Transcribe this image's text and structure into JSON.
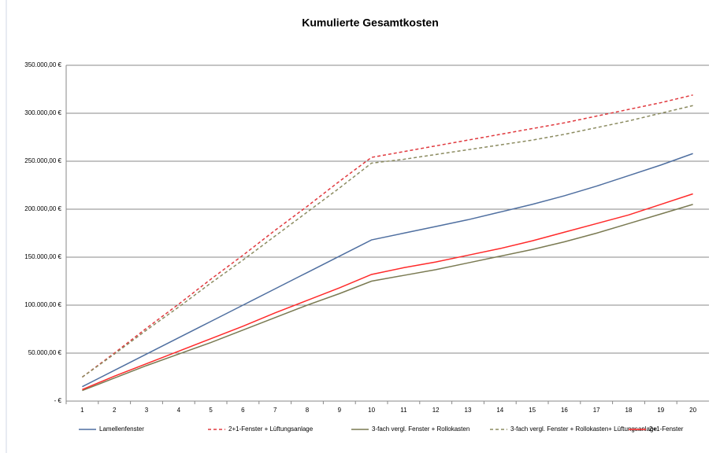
{
  "chart_data": {
    "type": "line",
    "title": "Kumulierte Gesamtkosten",
    "categories": [
      1,
      2,
      3,
      4,
      5,
      6,
      7,
      8,
      9,
      10,
      11,
      12,
      13,
      14,
      15,
      16,
      17,
      18,
      19,
      20
    ],
    "series": [
      {
        "name": "Lamellenfenster",
        "color": "#4f6fa0",
        "dashed": false,
        "values": [
          15000,
          32000,
          49000,
          66000,
          83000,
          100000,
          117000,
          134000,
          151000,
          168000,
          175000,
          182000,
          189000,
          197000,
          205000,
          214000,
          224000,
          235000,
          246000,
          258000
        ]
      },
      {
        "name": "2+1-Fenster + Lüftungsanlage",
        "color": "#e0393e",
        "dashed": true,
        "values": [
          25000,
          50000,
          76000,
          101000,
          127000,
          152000,
          178000,
          203000,
          229000,
          254000,
          260000,
          266000,
          272000,
          278000,
          284000,
          290000,
          297000,
          304000,
          311000,
          319000
        ]
      },
      {
        "name": "3-fach vergl. Fenster + Rollokasten",
        "color": "#7a7a52",
        "dashed": false,
        "values": [
          11000,
          24000,
          37000,
          49000,
          61000,
          74000,
          87000,
          100000,
          112000,
          125000,
          131000,
          137000,
          144000,
          151000,
          158000,
          166000,
          175000,
          185000,
          195000,
          205000
        ]
      },
      {
        "name": "3-fach vergl. Fenster + Rollokasten+ Lüftungsanlage",
        "color": "#8b8b60",
        "dashed": true,
        "values": [
          25000,
          49000,
          74000,
          98000,
          123000,
          147000,
          172000,
          197000,
          222000,
          248000,
          252000,
          257000,
          262000,
          267000,
          272000,
          278000,
          285000,
          292000,
          300000,
          308000
        ]
      },
      {
        "name": "2+1-Fenster",
        "color": "#ff2a2a",
        "dashed": false,
        "values": [
          12000,
          26000,
          39000,
          52000,
          65000,
          78000,
          92000,
          105000,
          118000,
          132000,
          139000,
          145000,
          152000,
          159000,
          167000,
          176000,
          185000,
          194000,
          205000,
          216000
        ]
      }
    ],
    "ylim": [
      0,
      350000
    ],
    "yticks": [
      {
        "value": 0,
        "label": "- €"
      },
      {
        "value": 50000,
        "label": "50.000,00 €"
      },
      {
        "value": 100000,
        "label": "100.000,00 €"
      },
      {
        "value": 150000,
        "label": "150.000,00 €"
      },
      {
        "value": 200000,
        "label": "200.000,00 €"
      },
      {
        "value": 250000,
        "label": "250.000,00 €"
      },
      {
        "value": 300000,
        "label": "300.000,00 €"
      },
      {
        "value": 350000,
        "label": "350.000,00 €"
      }
    ],
    "grid": true,
    "legend": "bottom"
  }
}
